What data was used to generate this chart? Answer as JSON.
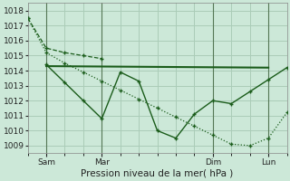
{
  "title": "Pression niveau de la mer( hPa )",
  "background_color": "#cce8d8",
  "grid_color": "#aaccb8",
  "line_color": "#1a5c1a",
  "xlim": [
    0,
    84
  ],
  "ylim": [
    1008.5,
    1018.5
  ],
  "yticks": [
    1009,
    1010,
    1011,
    1012,
    1013,
    1014,
    1015,
    1016,
    1017,
    1018
  ],
  "xtick_positions": [
    6,
    24,
    60,
    78
  ],
  "xtick_labels": [
    "Sam",
    "Mar",
    "Dim",
    "Lun"
  ],
  "vlines": [
    6,
    24,
    60,
    78
  ],
  "series1_dotted": {
    "x": [
      0,
      6,
      12,
      18,
      24,
      30,
      36,
      42,
      48,
      54,
      60,
      66,
      72,
      78,
      84
    ],
    "y": [
      1017.5,
      1015.2,
      1014.5,
      1013.9,
      1013.3,
      1012.7,
      1012.1,
      1011.5,
      1010.9,
      1010.3,
      1009.7,
      1009.1,
      1009.0,
      1009.5,
      1011.2
    ]
  },
  "series2_dashed": {
    "x": [
      0,
      6,
      12,
      18,
      24
    ],
    "y": [
      1017.5,
      1015.5,
      1015.2,
      1015.0,
      1014.8
    ]
  },
  "trend_line": {
    "x": [
      6,
      78
    ],
    "y": [
      1014.3,
      1014.2
    ]
  },
  "series3_solid": {
    "x": [
      6,
      12,
      18,
      24,
      30,
      36,
      42,
      48,
      54,
      60,
      66,
      72,
      78,
      84
    ],
    "y": [
      1014.4,
      1013.2,
      1012.0,
      1010.8,
      1013.9,
      1013.3,
      1010.0,
      1009.5,
      1011.1,
      1012.0,
      1011.8,
      1012.6,
      1013.4,
      1014.2
    ]
  }
}
